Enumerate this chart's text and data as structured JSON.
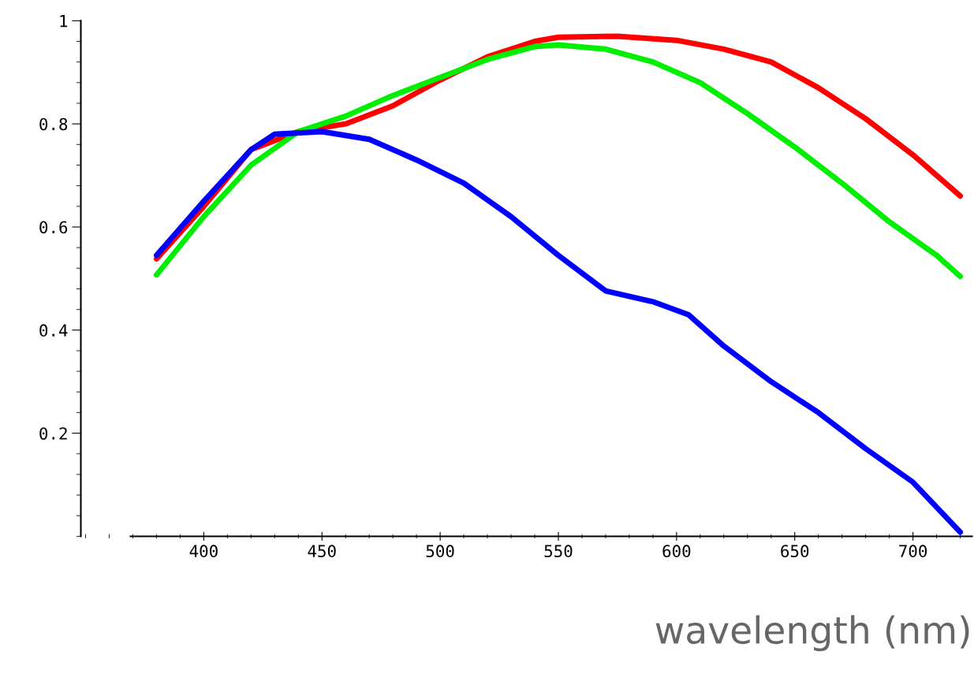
{
  "chart_data": {
    "type": "line",
    "xlabel": "wavelength (nm)",
    "x": [
      380,
      400,
      420,
      440,
      460,
      480,
      500,
      520,
      540,
      550,
      575,
      600,
      620,
      640,
      660,
      680,
      700,
      720
    ],
    "series": [
      {
        "color": "#ff0000",
        "values": [
          0.538,
          0.64,
          0.75,
          0.785,
          0.8,
          0.835,
          0.885,
          0.93,
          0.96,
          0.968,
          0.97,
          0.962,
          0.945,
          0.92,
          0.87,
          0.81,
          0.74,
          0.66
        ]
      },
      {
        "color": "#00ee00",
        "x": [
          380,
          400,
          420,
          440,
          460,
          480,
          500,
          520,
          540,
          550,
          570,
          590,
          610,
          630,
          650,
          670,
          690,
          710,
          720
        ],
        "values": [
          0.507,
          0.62,
          0.72,
          0.785,
          0.815,
          0.855,
          0.89,
          0.925,
          0.95,
          0.953,
          0.945,
          0.92,
          0.88,
          0.82,
          0.755,
          0.685,
          0.61,
          0.545,
          0.504
        ]
      },
      {
        "color": "#0000ff",
        "x": [
          380,
          400,
          420,
          430,
          450,
          470,
          490,
          510,
          530,
          550,
          570,
          590,
          605,
          620,
          640,
          660,
          680,
          700,
          720
        ],
        "values": [
          0.545,
          0.65,
          0.75,
          0.78,
          0.785,
          0.77,
          0.73,
          0.685,
          0.62,
          0.545,
          0.476,
          0.455,
          0.43,
          0.369,
          0.3,
          0.24,
          0.17,
          0.105,
          0.008
        ]
      }
    ],
    "xlim": [
      348,
      725
    ],
    "ylim": [
      0,
      1.0
    ],
    "xticks": [
      400,
      450,
      500,
      550,
      600,
      650,
      700
    ],
    "yticks": [
      0.2,
      0.4,
      0.6,
      0.8,
      {
        "value": 1.0,
        "label": "1"
      }
    ],
    "grid": false,
    "legend": false,
    "marker": "none",
    "line_style": "solid"
  }
}
